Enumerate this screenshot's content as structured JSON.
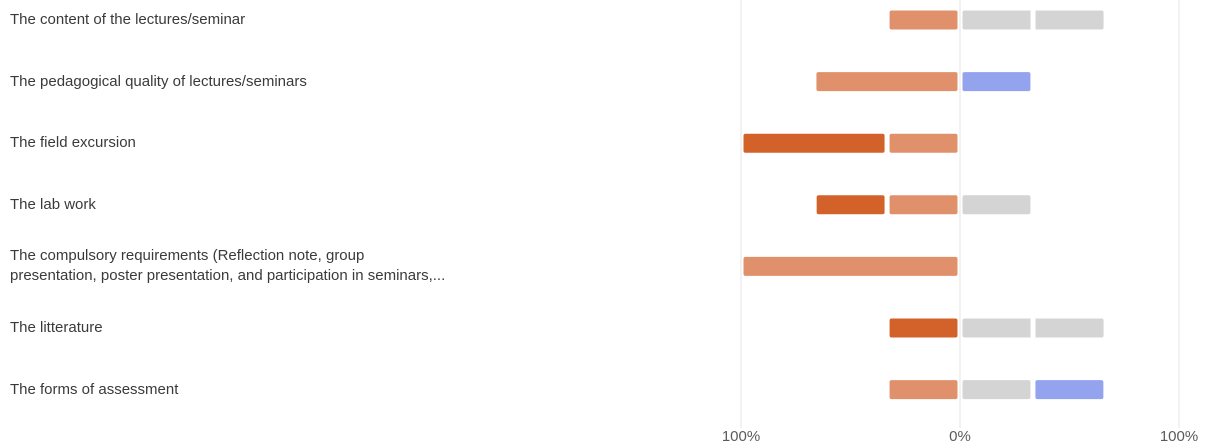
{
  "chart_data": {
    "type": "bar",
    "subtype": "diverging-stacked",
    "xlim": [
      -100,
      100
    ],
    "x_tick_labels": [
      "100%",
      "0%",
      "100%"
    ],
    "grid": true,
    "categories": [
      [
        "The content of the lectures/seminar"
      ],
      [
        "The pedagogical quality of lectures/seminars"
      ],
      [
        "The field excursion"
      ],
      [
        "The lab work"
      ],
      [
        "The compulsory requirements (Reflection note, group",
        "presentation, poster presentation, and participation in seminars,..."
      ],
      [
        "The litterature"
      ],
      [
        "The forms of assessment"
      ]
    ],
    "series": [
      {
        "color": "#d2622a",
        "values": [
          0,
          0,
          66.7,
          33.3,
          0,
          33.3,
          0
        ]
      },
      {
        "color": "#e0906a",
        "values": [
          33.3,
          66.7,
          33.3,
          33.3,
          100,
          0,
          33.3
        ]
      },
      {
        "color": "#d4d4d4",
        "values": [
          66.7,
          0,
          0,
          33.3,
          0,
          66.7,
          33.3
        ]
      },
      {
        "color": "#d4d4d4",
        "values": [
          0,
          0,
          0,
          0,
          0,
          0,
          0
        ]
      },
      {
        "color": "#93a3ee",
        "values": [
          0,
          33.3,
          0,
          0,
          0,
          0,
          33.3
        ]
      }
    ]
  }
}
